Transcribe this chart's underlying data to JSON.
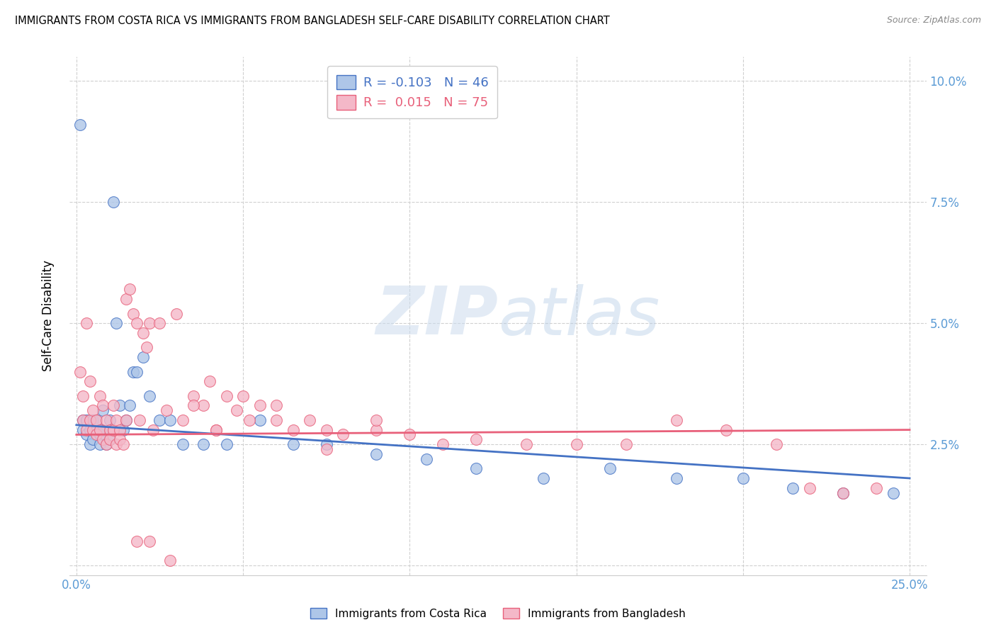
{
  "title": "IMMIGRANTS FROM COSTA RICA VS IMMIGRANTS FROM BANGLADESH SELF-CARE DISABILITY CORRELATION CHART",
  "source": "Source: ZipAtlas.com",
  "xlabel_vals": [
    0.0,
    0.25
  ],
  "xlabel_labels": [
    "0.0%",
    "25.0%"
  ],
  "ylabel_vals": [
    0.0,
    0.025,
    0.05,
    0.075,
    0.1
  ],
  "ylabel_labels": [
    "",
    "2.5%",
    "5.0%",
    "7.5%",
    "10.0%"
  ],
  "ylabel_label": "Self-Care Disability",
  "xlim": [
    -0.002,
    0.255
  ],
  "ylim": [
    -0.002,
    0.105
  ],
  "costa_rica_R": -0.103,
  "costa_rica_N": 46,
  "bangladesh_R": 0.015,
  "bangladesh_N": 75,
  "costa_rica_color": "#aec6e8",
  "bangladesh_color": "#f4b8c8",
  "costa_rica_line_color": "#4472c4",
  "bangladesh_line_color": "#e8607a",
  "legend_label_1": "Immigrants from Costa Rica",
  "legend_label_2": "Immigrants from Bangladesh",
  "watermark_zip": "ZIP",
  "watermark_atlas": "atlas",
  "background_color": "#ffffff",
  "grid_color": "#d0d0d0",
  "axis_color": "#5b9bd5",
  "cr_x": [
    0.001,
    0.002,
    0.002,
    0.003,
    0.003,
    0.004,
    0.004,
    0.005,
    0.005,
    0.006,
    0.006,
    0.007,
    0.007,
    0.008,
    0.008,
    0.009,
    0.01,
    0.01,
    0.011,
    0.012,
    0.013,
    0.014,
    0.015,
    0.016,
    0.017,
    0.018,
    0.02,
    0.022,
    0.025,
    0.028,
    0.032,
    0.038,
    0.045,
    0.055,
    0.065,
    0.075,
    0.09,
    0.105,
    0.12,
    0.14,
    0.16,
    0.18,
    0.2,
    0.215,
    0.23,
    0.245
  ],
  "cr_y": [
    0.091,
    0.028,
    0.03,
    0.027,
    0.03,
    0.025,
    0.028,
    0.03,
    0.026,
    0.028,
    0.03,
    0.027,
    0.025,
    0.032,
    0.028,
    0.025,
    0.03,
    0.026,
    0.075,
    0.05,
    0.033,
    0.028,
    0.03,
    0.033,
    0.04,
    0.04,
    0.043,
    0.035,
    0.03,
    0.03,
    0.025,
    0.025,
    0.025,
    0.03,
    0.025,
    0.025,
    0.023,
    0.022,
    0.02,
    0.018,
    0.02,
    0.018,
    0.018,
    0.016,
    0.015,
    0.015
  ],
  "bd_x": [
    0.001,
    0.002,
    0.002,
    0.003,
    0.003,
    0.004,
    0.004,
    0.005,
    0.005,
    0.006,
    0.006,
    0.007,
    0.007,
    0.008,
    0.008,
    0.009,
    0.009,
    0.01,
    0.01,
    0.011,
    0.011,
    0.012,
    0.012,
    0.013,
    0.013,
    0.014,
    0.015,
    0.015,
    0.016,
    0.017,
    0.018,
    0.019,
    0.02,
    0.021,
    0.022,
    0.023,
    0.025,
    0.027,
    0.03,
    0.032,
    0.035,
    0.038,
    0.04,
    0.042,
    0.045,
    0.048,
    0.052,
    0.055,
    0.06,
    0.065,
    0.07,
    0.075,
    0.08,
    0.09,
    0.1,
    0.11,
    0.12,
    0.135,
    0.15,
    0.165,
    0.18,
    0.195,
    0.21,
    0.22,
    0.23,
    0.24,
    0.018,
    0.022,
    0.028,
    0.035,
    0.042,
    0.05,
    0.06,
    0.075,
    0.09
  ],
  "bd_y": [
    0.04,
    0.03,
    0.035,
    0.05,
    0.028,
    0.038,
    0.03,
    0.032,
    0.028,
    0.03,
    0.027,
    0.035,
    0.028,
    0.033,
    0.026,
    0.03,
    0.025,
    0.028,
    0.026,
    0.033,
    0.028,
    0.03,
    0.025,
    0.028,
    0.026,
    0.025,
    0.055,
    0.03,
    0.057,
    0.052,
    0.05,
    0.03,
    0.048,
    0.045,
    0.05,
    0.028,
    0.05,
    0.032,
    0.052,
    0.03,
    0.035,
    0.033,
    0.038,
    0.028,
    0.035,
    0.032,
    0.03,
    0.033,
    0.03,
    0.028,
    0.03,
    0.028,
    0.027,
    0.028,
    0.027,
    0.025,
    0.026,
    0.025,
    0.025,
    0.025,
    0.03,
    0.028,
    0.025,
    0.016,
    0.015,
    0.016,
    0.005,
    0.005,
    0.001,
    0.033,
    0.028,
    0.035,
    0.033,
    0.024,
    0.03
  ],
  "cr_trend_x": [
    0.0,
    0.25
  ],
  "cr_trend_y": [
    0.029,
    0.018
  ],
  "bd_trend_x": [
    0.0,
    0.25
  ],
  "bd_trend_y": [
    0.027,
    0.028
  ]
}
